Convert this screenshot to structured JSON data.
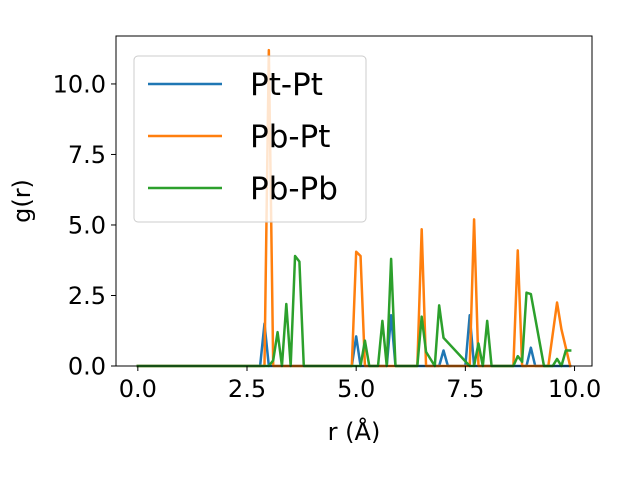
{
  "chart_data": {
    "type": "line",
    "title": "",
    "xlabel": "r (Å)",
    "ylabel": "g(r)",
    "xlim": [
      -0.5,
      10.4
    ],
    "ylim": [
      0,
      11.7
    ],
    "xticks": [
      0.0,
      2.5,
      5.0,
      7.5,
      10.0
    ],
    "xtick_labels": [
      "0.0",
      "2.5",
      "5.0",
      "7.5",
      "10.0"
    ],
    "yticks": [
      0.0,
      2.5,
      5.0,
      7.5,
      10.0
    ],
    "ytick_labels": [
      "0.0",
      "2.5",
      "5.0",
      "7.5",
      "10.0"
    ],
    "grid": false,
    "legend_position": "upper-left",
    "series": [
      {
        "name": "Pt-Pt",
        "color": "#1f77b4",
        "x": [
          0.0,
          2.8,
          2.9,
          3.0,
          3.1,
          4.9,
          5.0,
          5.1,
          5.7,
          5.8,
          5.9,
          6.9,
          7.0,
          7.1,
          7.5,
          7.6,
          7.7,
          8.9,
          9.0,
          9.1,
          9.9
        ],
        "y": [
          0.0,
          0.0,
          1.5,
          0.0,
          0.0,
          0.0,
          1.05,
          0.0,
          0.0,
          1.8,
          0.0,
          0.0,
          0.55,
          0.0,
          0.0,
          1.8,
          0.0,
          0.0,
          0.65,
          0.0,
          0.0
        ]
      },
      {
        "name": "Pb-Pt",
        "color": "#ff7f0e",
        "x": [
          0.0,
          2.9,
          3.0,
          3.1,
          4.9,
          5.0,
          5.1,
          5.2,
          6.4,
          6.5,
          6.6,
          7.6,
          7.7,
          7.8,
          8.6,
          8.7,
          8.8,
          9.4,
          9.6,
          9.7,
          9.9
        ],
        "y": [
          0.0,
          0.0,
          11.2,
          0.0,
          0.0,
          4.05,
          3.9,
          0.0,
          0.0,
          4.85,
          0.0,
          0.0,
          5.2,
          0.0,
          0.0,
          4.1,
          0.0,
          0.0,
          2.25,
          1.3,
          0.0
        ]
      },
      {
        "name": "Pb-Pb",
        "color": "#2ca02c",
        "x": [
          0.0,
          3.0,
          3.1,
          3.2,
          3.3,
          3.4,
          3.5,
          3.6,
          3.7,
          3.8,
          5.1,
          5.2,
          5.3,
          5.5,
          5.6,
          5.7,
          5.8,
          5.9,
          6.4,
          6.5,
          6.6,
          6.8,
          6.9,
          7.0,
          7.6,
          7.7,
          7.8,
          7.9,
          8.0,
          8.1,
          8.6,
          8.7,
          8.8,
          8.9,
          9.0,
          9.3,
          9.5,
          9.6,
          9.7,
          9.8,
          9.9
        ],
        "y": [
          0.0,
          0.0,
          0.2,
          1.2,
          0.0,
          2.2,
          0.0,
          3.9,
          3.7,
          0.0,
          0.0,
          0.9,
          0.0,
          0.0,
          1.6,
          0.0,
          3.8,
          0.0,
          0.0,
          1.75,
          0.5,
          0.0,
          2.15,
          1.0,
          0.0,
          0.0,
          0.8,
          0.0,
          1.6,
          0.0,
          0.0,
          0.35,
          0.15,
          2.6,
          2.55,
          0.0,
          0.0,
          0.25,
          0.0,
          0.55,
          0.55
        ]
      }
    ]
  }
}
